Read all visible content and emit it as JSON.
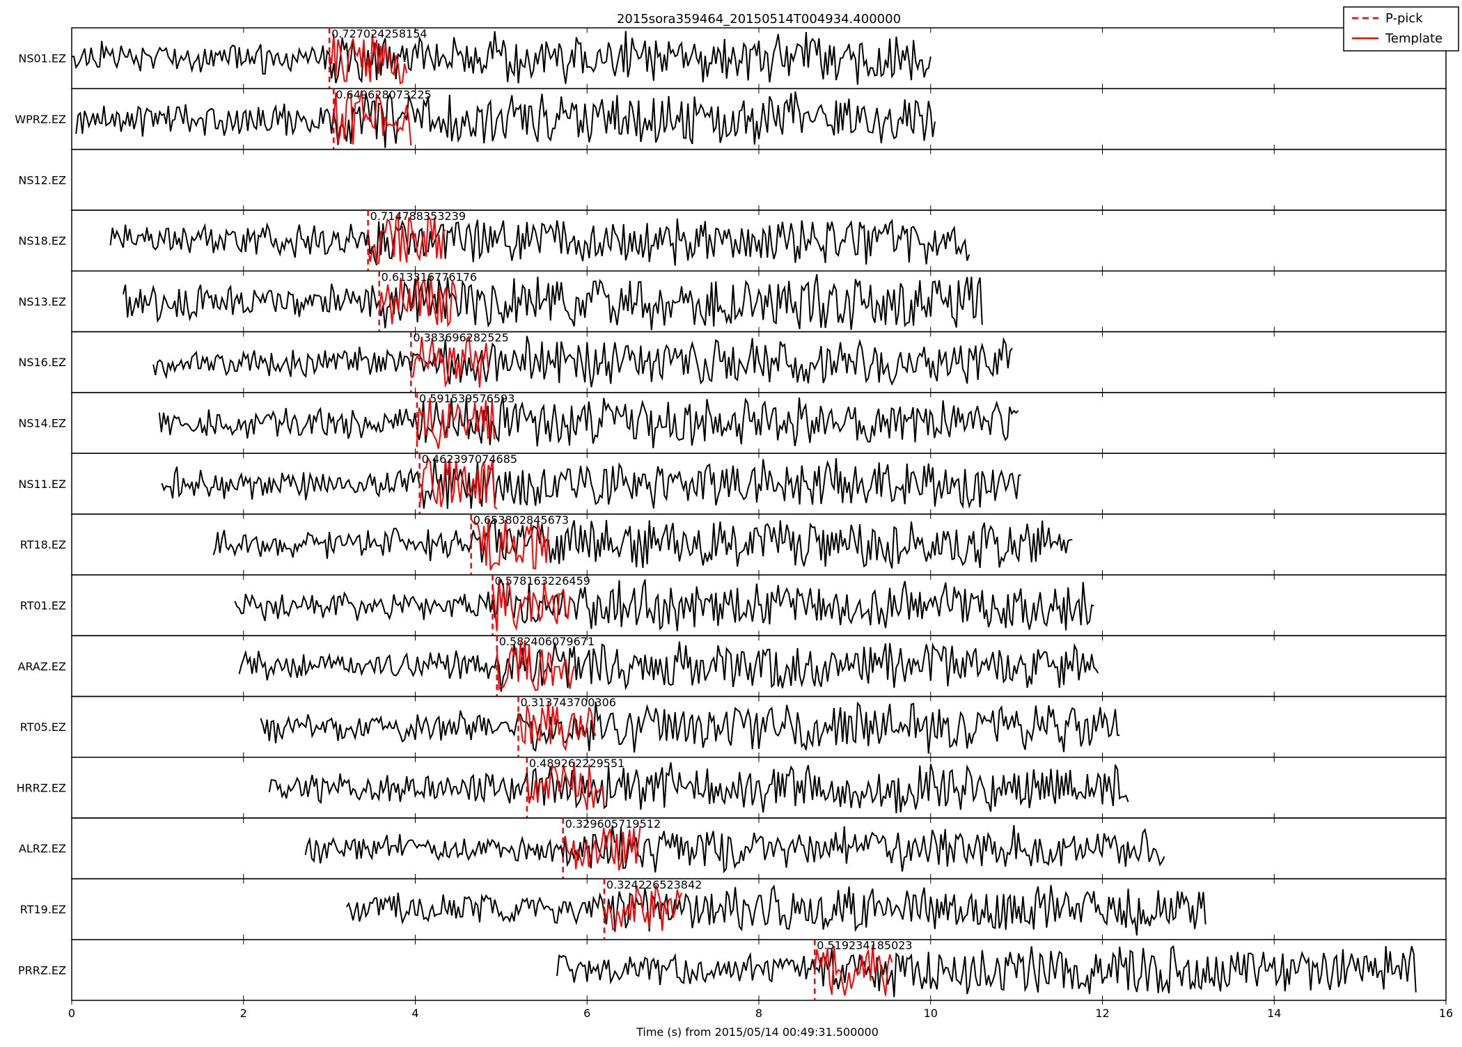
{
  "chart_data": {
    "type": "line",
    "title": "2015sora359464_20150514T004934.400000",
    "xlabel": "Time (s) from 2015/05/14 00:49:31.500000",
    "ylabel": "",
    "xlim": [
      0,
      16
    ],
    "xticks": [
      0,
      2,
      4,
      6,
      8,
      10,
      12,
      14,
      16
    ],
    "xtick_labels": [
      "0",
      "2",
      "4",
      "6",
      "8",
      "10",
      "12",
      "14",
      "16"
    ],
    "legend": {
      "placement": "top-right",
      "entries": [
        {
          "label": "P-pick",
          "color": "#ff0000",
          "style": "dashed"
        },
        {
          "label": "Template",
          "color": "#ff0000",
          "style": "solid"
        }
      ]
    },
    "trace_color": "#000000",
    "template_color": "#ff0000",
    "template_duration_s": 0.9,
    "traces": [
      {
        "station": "NS01.EZ",
        "start": 0.0,
        "end": 10.0,
        "pick": 3.0,
        "cc": "0.727024258154",
        "amp": 0.45
      },
      {
        "station": "WPRZ.EZ",
        "start": 0.05,
        "end": 10.05,
        "pick": 3.05,
        "cc": "0.649628073225",
        "amp": 0.5
      },
      {
        "station": "NS12.EZ",
        "start": null,
        "end": null,
        "pick": null,
        "cc": null,
        "amp": 0
      },
      {
        "station": "NS18.EZ",
        "start": 0.45,
        "end": 10.45,
        "pick": 3.45,
        "cc": "0.714788353239",
        "amp": 0.45
      },
      {
        "station": "NS13.EZ",
        "start": 0.6,
        "end": 10.6,
        "pick": 3.58,
        "cc": "0.613316776176",
        "amp": 0.5
      },
      {
        "station": "NS16.EZ",
        "start": 0.95,
        "end": 10.95,
        "pick": 3.95,
        "cc": "0.383696282525",
        "amp": 0.45
      },
      {
        "station": "NS14.EZ",
        "start": 1.02,
        "end": 11.02,
        "pick": 4.02,
        "cc": "0.591539576593",
        "amp": 0.45
      },
      {
        "station": "NS11.EZ",
        "start": 1.05,
        "end": 11.05,
        "pick": 4.05,
        "cc": "0.462397074685",
        "amp": 0.45
      },
      {
        "station": "RT18.EZ",
        "start": 1.65,
        "end": 11.65,
        "pick": 4.65,
        "cc": "0.653802845673",
        "amp": 0.45
      },
      {
        "station": "RT01.EZ",
        "start": 1.9,
        "end": 11.9,
        "pick": 4.9,
        "cc": "0.578163226459",
        "amp": 0.45
      },
      {
        "station": "ARAZ.EZ",
        "start": 1.95,
        "end": 11.95,
        "pick": 4.95,
        "cc": "0.582406079671",
        "amp": 0.45
      },
      {
        "station": "RT05.EZ",
        "start": 2.2,
        "end": 12.2,
        "pick": 5.2,
        "cc": "0.313743700306",
        "amp": 0.45
      },
      {
        "station": "HRRZ.EZ",
        "start": 2.3,
        "end": 12.3,
        "pick": 5.3,
        "cc": "0.489262229551",
        "amp": 0.45
      },
      {
        "station": "ALRZ.EZ",
        "start": 2.72,
        "end": 12.72,
        "pick": 5.72,
        "cc": "0.329605719512",
        "amp": 0.4
      },
      {
        "station": "RT19.EZ",
        "start": 3.2,
        "end": 13.2,
        "pick": 6.2,
        "cc": "0.324226523842",
        "amp": 0.45
      },
      {
        "station": "PRRZ.EZ",
        "start": 5.65,
        "end": 15.65,
        "pick": 8.65,
        "cc": "0.519234185023",
        "amp": 0.45
      }
    ]
  }
}
